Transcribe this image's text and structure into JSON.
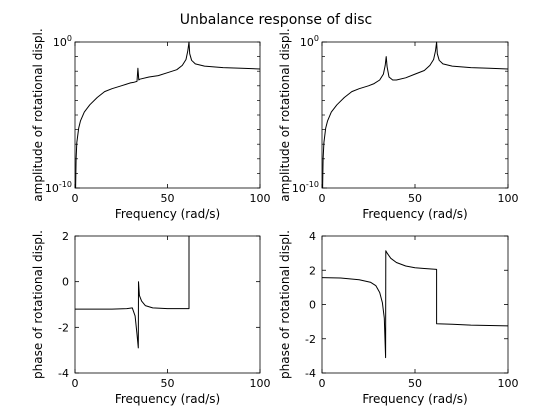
{
  "figure": {
    "title": "Unbalance response of disc"
  },
  "chart_data": [
    {
      "type": "line",
      "title": "",
      "xlabel": "Frequency (rad/s)",
      "ylabel": "amplitude of rotational displ.",
      "xlim": [
        0,
        100
      ],
      "ylim_log10": [
        -10,
        0
      ],
      "yscale": "log",
      "xticks": [
        "0",
        "50",
        "100"
      ],
      "yticks": [
        {
          "base": "10",
          "exp": "-10",
          "log10": -10
        },
        {
          "base": "10",
          "exp": "0",
          "log10": 0
        }
      ],
      "grid": false,
      "series": [
        {
          "points_log10": [
            [
              0.3,
              -10
            ],
            [
              0.6,
              -8
            ],
            [
              1,
              -6.9
            ],
            [
              2,
              -5.9
            ],
            [
              3,
              -5.4
            ],
            [
              5,
              -4.8
            ],
            [
              8,
              -4.3
            ],
            [
              12,
              -3.8
            ],
            [
              16,
              -3.4
            ],
            [
              20,
              -3.2
            ],
            [
              25,
              -3.0
            ],
            [
              30,
              -2.8
            ],
            [
              32,
              -2.75
            ],
            [
              33.5,
              -2.7
            ],
            [
              34,
              -1.8
            ],
            [
              34.5,
              -2.6
            ],
            [
              35,
              -2.55
            ],
            [
              40,
              -2.4
            ],
            [
              45,
              -2.3
            ],
            [
              50,
              -2.1
            ],
            [
              55,
              -1.9
            ],
            [
              58,
              -1.6
            ],
            [
              60,
              -1.2
            ],
            [
              61,
              -0.6
            ],
            [
              61.6,
              0
            ],
            [
              62,
              -0.8
            ],
            [
              63,
              -1.25
            ],
            [
              65,
              -1.5
            ],
            [
              70,
              -1.65
            ],
            [
              80,
              -1.75
            ],
            [
              90,
              -1.8
            ],
            [
              100,
              -1.85
            ]
          ]
        }
      ]
    },
    {
      "type": "line",
      "title": "",
      "xlabel": "Frequency (rad/s)",
      "ylabel": "amplitude of rotational displ.",
      "xlim": [
        0,
        100
      ],
      "ylim_log10": [
        -10,
        0
      ],
      "yscale": "log",
      "xticks": [
        "0",
        "50",
        "100"
      ],
      "yticks": [
        {
          "base": "10",
          "exp": "-10",
          "log10": -10
        },
        {
          "base": "10",
          "exp": "0",
          "log10": 0
        }
      ],
      "grid": false,
      "series": [
        {
          "points_log10": [
            [
              0.3,
              -10
            ],
            [
              0.6,
              -8
            ],
            [
              1,
              -6.9
            ],
            [
              2,
              -5.9
            ],
            [
              3,
              -5.4
            ],
            [
              5,
              -4.8
            ],
            [
              8,
              -4.3
            ],
            [
              12,
              -3.8
            ],
            [
              16,
              -3.4
            ],
            [
              20,
              -3.2
            ],
            [
              25,
              -3.0
            ],
            [
              28,
              -2.85
            ],
            [
              31,
              -2.6
            ],
            [
              33,
              -2.2
            ],
            [
              34,
              -1.6
            ],
            [
              34.5,
              -1.0
            ],
            [
              35,
              -1.7
            ],
            [
              36,
              -2.4
            ],
            [
              38,
              -2.6
            ],
            [
              40,
              -2.6
            ],
            [
              45,
              -2.45
            ],
            [
              50,
              -2.2
            ],
            [
              55,
              -1.95
            ],
            [
              58,
              -1.6
            ],
            [
              60,
              -1.2
            ],
            [
              61,
              -0.6
            ],
            [
              61.6,
              0
            ],
            [
              62,
              -0.8
            ],
            [
              63,
              -1.25
            ],
            [
              65,
              -1.5
            ],
            [
              70,
              -1.65
            ],
            [
              80,
              -1.75
            ],
            [
              90,
              -1.8
            ],
            [
              100,
              -1.85
            ]
          ]
        }
      ]
    },
    {
      "type": "line",
      "title": "",
      "xlabel": "Frequency (rad/s)",
      "ylabel": "phase of rotational displ.",
      "xlim": [
        0,
        100
      ],
      "ylim": [
        -4,
        2
      ],
      "xticks": [
        "0",
        "50",
        "100"
      ],
      "yticks": [
        "2",
        "0",
        "-2",
        "-4"
      ],
      "grid": false,
      "series": [
        {
          "points": [
            [
              0,
              -1.2
            ],
            [
              20,
              -1.2
            ],
            [
              28,
              -1.18
            ],
            [
              31,
              -1.15
            ],
            [
              32.5,
              -1.5
            ],
            [
              33.5,
              -2.3
            ],
            [
              34.2,
              -2.9
            ],
            [
              34.3,
              0.0
            ],
            [
              34.8,
              -0.6
            ],
            [
              36,
              -0.85
            ],
            [
              38,
              -1.05
            ],
            [
              42,
              -1.15
            ],
            [
              50,
              -1.18
            ],
            [
              61.6,
              -1.18
            ],
            [
              61.6,
              2.0
            ]
          ]
        }
      ]
    },
    {
      "type": "line",
      "title": "",
      "xlabel": "Frequency (rad/s)",
      "ylabel": "phase of rotational displ.",
      "xlim": [
        0,
        100
      ],
      "ylim": [
        -4,
        4
      ],
      "xticks": [
        "0",
        "50",
        "100"
      ],
      "yticks": [
        "4",
        "2",
        "0",
        "-2",
        "-4"
      ],
      "grid": false,
      "series": [
        {
          "points": [
            [
              0,
              1.57
            ],
            [
              10,
              1.55
            ],
            [
              20,
              1.45
            ],
            [
              26,
              1.3
            ],
            [
              29,
              1.1
            ],
            [
              31,
              0.7
            ],
            [
              32.5,
              0.1
            ],
            [
              33.5,
              -0.8
            ],
            [
              34.2,
              -3.1
            ],
            [
              34.3,
              3.14
            ],
            [
              35,
              3.0
            ],
            [
              37,
              2.7
            ],
            [
              40,
              2.45
            ],
            [
              45,
              2.25
            ],
            [
              50,
              2.15
            ],
            [
              55,
              2.1
            ],
            [
              61.6,
              2.05
            ],
            [
              61.6,
              -1.12
            ],
            [
              70,
              -1.15
            ],
            [
              80,
              -1.2
            ],
            [
              100,
              -1.25
            ]
          ]
        }
      ]
    }
  ]
}
